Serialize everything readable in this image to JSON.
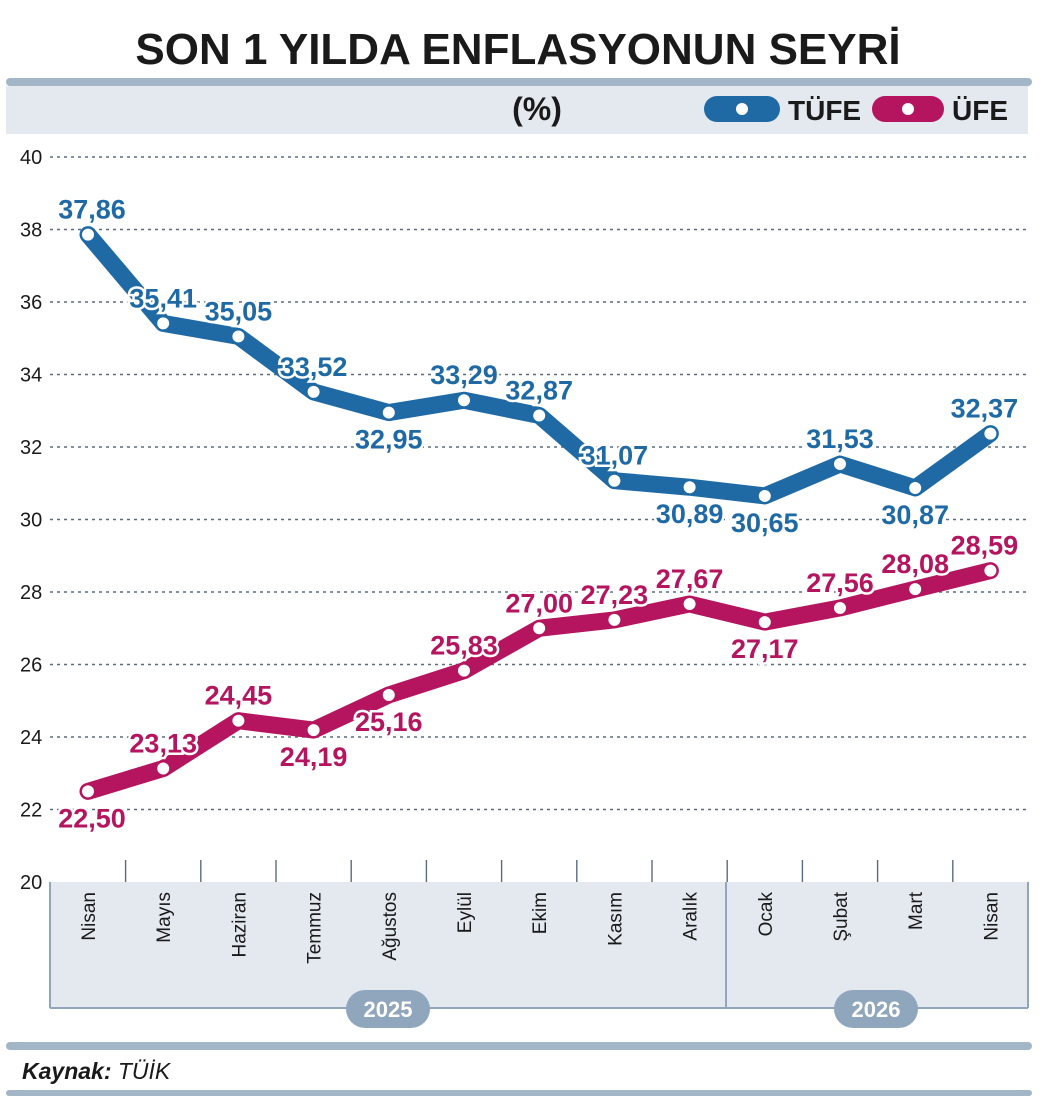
{
  "title": "SON 1 YILDA ENFLASYONUN SEYRİ",
  "unit": "(%)",
  "source": {
    "label": "Kaynak:",
    "value": "TÜİK"
  },
  "years": [
    "2025",
    "2026"
  ],
  "colors": {
    "tufe": "#1f6aa5",
    "ufe": "#b5145e",
    "panel": "#e3e9ef",
    "frame": "#a3b6c8",
    "badge": "#8fa6bd"
  },
  "chart_data": {
    "type": "line",
    "categories": [
      "Nisan",
      "Mayıs",
      "Haziran",
      "Temmuz",
      "Ağustos",
      "Eylül",
      "Ekim",
      "Kasım",
      "Aralık",
      "Ocak",
      "Şubat",
      "Mart",
      "Nisan"
    ],
    "ylim": [
      20,
      40
    ],
    "yticks": [
      20,
      22,
      24,
      26,
      28,
      30,
      32,
      34,
      36,
      38,
      40
    ],
    "grid": true,
    "legend_position": "top-right",
    "series": [
      {
        "name": "TÜFE",
        "values": [
          37.86,
          35.41,
          35.05,
          33.52,
          32.95,
          33.29,
          32.87,
          31.07,
          30.89,
          30.65,
          31.53,
          30.87,
          32.37
        ],
        "labels": [
          "37,86",
          "35,41",
          "35,05",
          "33,52",
          "32,95",
          "33,29",
          "32,87",
          "31,07",
          "30,89",
          "30,65",
          "31,53",
          "30,87",
          "32,37"
        ],
        "label_side": [
          "above",
          "above",
          "above",
          "above",
          "below",
          "above",
          "above",
          "above",
          "below",
          "below",
          "above",
          "below",
          "above"
        ]
      },
      {
        "name": "ÜFE",
        "values": [
          22.5,
          23.13,
          24.45,
          24.19,
          25.16,
          25.83,
          27.0,
          27.23,
          27.67,
          27.17,
          27.56,
          28.08,
          28.59
        ],
        "labels": [
          "22,50",
          "23,13",
          "24,45",
          "24,19",
          "25,16",
          "25,83",
          "27,00",
          "27,23",
          "27,67",
          "27,17",
          "27,56",
          "28,08",
          "28,59"
        ],
        "label_side": [
          "below",
          "above",
          "above",
          "below",
          "below",
          "above",
          "above",
          "above",
          "above",
          "below",
          "above",
          "above",
          "above"
        ]
      }
    ]
  }
}
